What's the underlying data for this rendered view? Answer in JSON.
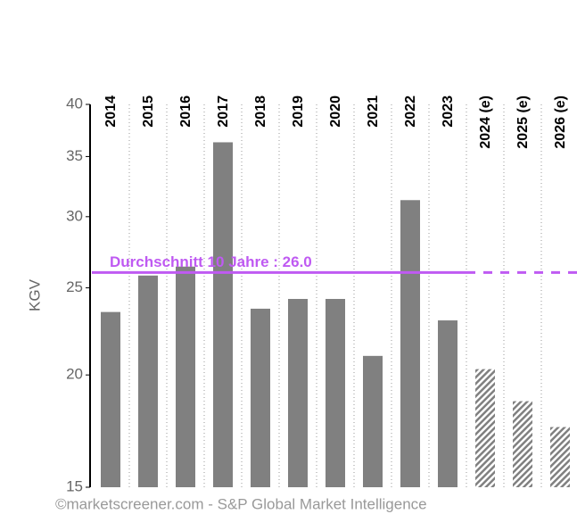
{
  "chart_data": {
    "type": "bar",
    "categories": [
      "2014",
      "2015",
      "2016",
      "2017",
      "2018",
      "2019",
      "2020",
      "2021",
      "2022",
      "2023",
      "2024 (e)",
      "2025 (e)",
      "2026 (e)"
    ],
    "values": [
      23.5,
      25.8,
      26.4,
      36.3,
      23.7,
      24.3,
      24.3,
      21.0,
      31.3,
      23.0,
      20.3,
      18.7,
      17.5
    ],
    "hatched": [
      false,
      false,
      false,
      false,
      false,
      false,
      false,
      false,
      false,
      false,
      true,
      true,
      true
    ],
    "color": "#808080",
    "ylabel": "KGV",
    "log_scale": true,
    "ylim": [
      15,
      40
    ],
    "yticks": [
      15,
      20,
      25,
      30,
      35,
      40
    ],
    "grid": true,
    "average": {
      "value": 26.0,
      "label": "Durchschnitt 10 Jahre : 26.0",
      "color": "#bf5af2"
    },
    "footer": "©marketscreener.com - S&P Global Market Intelligence"
  }
}
